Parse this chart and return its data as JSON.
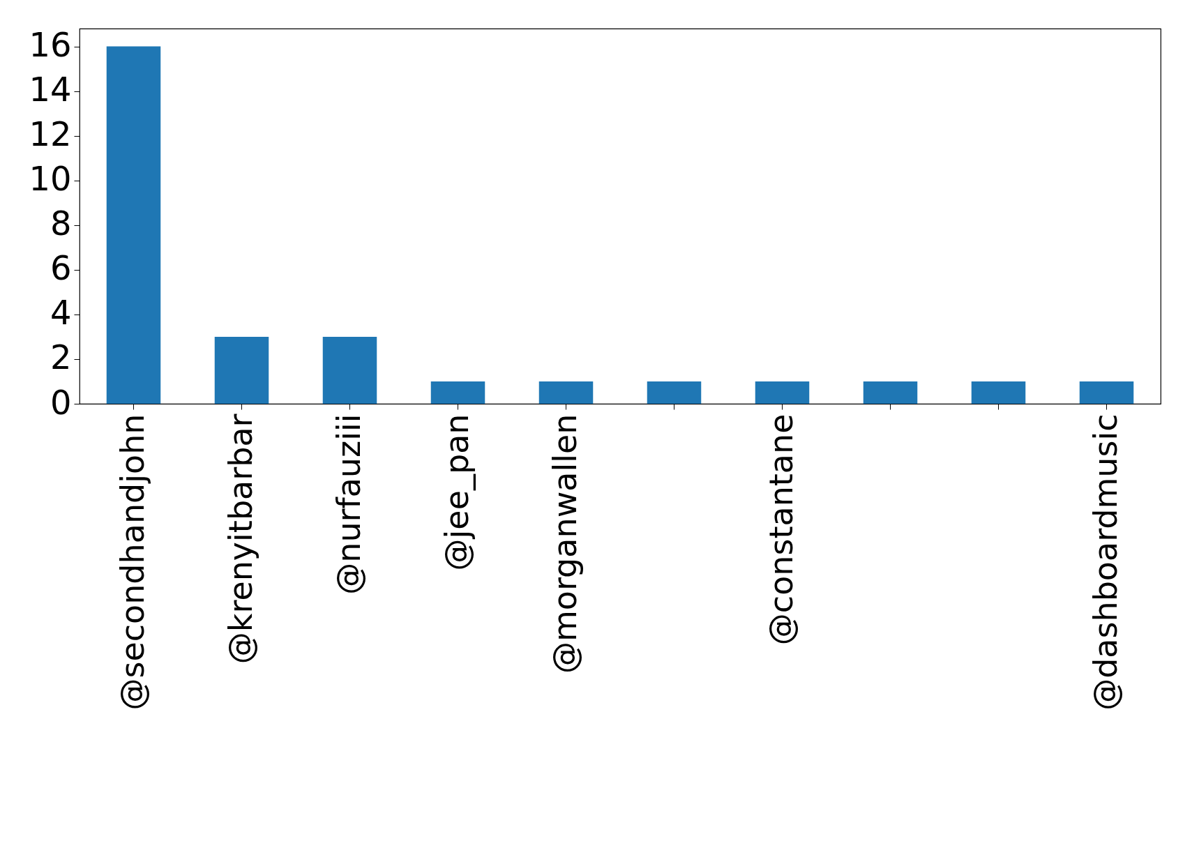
{
  "chart_data": {
    "type": "bar",
    "categories": [
      "@secondhandjohn",
      "@krenyitbarbar",
      "@nurfauziii",
      "@jee_pan",
      "@morganwallen",
      null,
      "@constantane",
      null,
      null,
      "@dashboardmusic"
    ],
    "values": [
      16,
      3,
      3,
      1,
      1,
      1,
      1,
      1,
      1,
      1
    ],
    "color": "#1f77b4",
    "ylim": [
      0,
      16.8
    ],
    "yticks": [
      0,
      2,
      4,
      6,
      8,
      10,
      12,
      14,
      16
    ],
    "grid": false
  }
}
